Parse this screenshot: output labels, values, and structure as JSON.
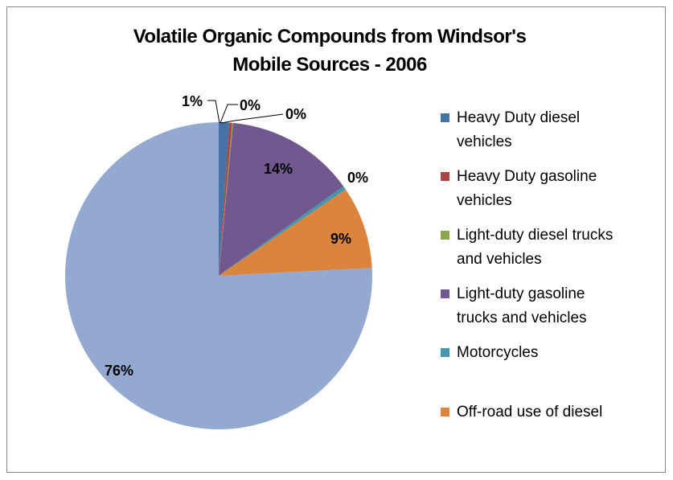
{
  "chart_data": {
    "type": "pie",
    "title": "Volatile Organic Compounds  from Windsor's Mobile Sources - 2006",
    "title_lines": [
      "Volatile Organic Compounds  from Windsor's",
      "Mobile Sources - 2006"
    ],
    "slices": [
      {
        "name": "Heavy Duty diesel vehicles",
        "value": 1.1,
        "label": "1%",
        "color": "#4572A7"
      },
      {
        "name": "Heavy Duty gasoline vehicles",
        "value": 0.3,
        "label": "0%",
        "color": "#AA4643"
      },
      {
        "name": "Light-duty diesel trucks and vehicles",
        "value": 0.1,
        "label": "0%",
        "color": "#89A54E"
      },
      {
        "name": "Light-duty gasoline trucks and vehicles",
        "value": 13.6,
        "label": "14%",
        "color": "#71588F"
      },
      {
        "name": "Motorcycles",
        "value": 0.4,
        "label": "0%",
        "color": "#4198AF"
      },
      {
        "name": "Off-road use of diesel",
        "value": 8.7,
        "label": "9%",
        "color": "#DB843D"
      },
      {
        "name": "",
        "value": 75.8,
        "label": "76%",
        "color": "#93A9CF"
      }
    ],
    "legend": {
      "placement": "right",
      "items": [
        {
          "lines": [
            "Heavy Duty diesel",
            "vehicles"
          ],
          "color": "#4572A7"
        },
        {
          "lines": [
            "Heavy Duty gasoline",
            "vehicles"
          ],
          "color": "#AA4643"
        },
        {
          "lines": [
            "Light-duty diesel trucks",
            "and vehicles"
          ],
          "color": "#89A54E"
        },
        {
          "lines": [
            "Light-duty gasoline",
            "trucks and vehicles"
          ],
          "color": "#71588F"
        },
        {
          "lines": [
            "Motorcycles"
          ],
          "color": "#4198AF"
        },
        {
          "lines": [
            "Off-road use of diesel"
          ],
          "color": "#DB843D"
        }
      ]
    }
  }
}
